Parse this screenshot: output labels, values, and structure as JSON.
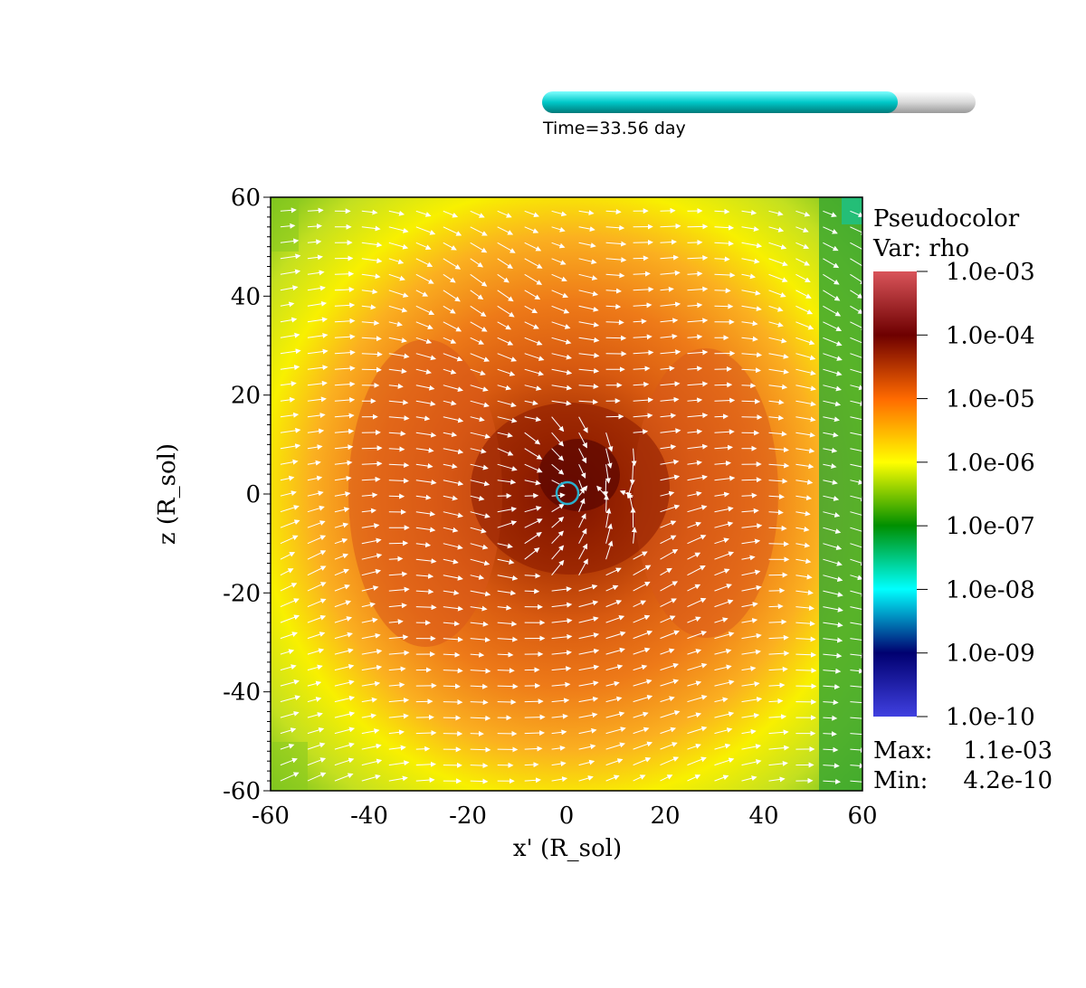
{
  "time_slider": {
    "label": "Time=33.56 day",
    "progress_fraction": 0.82,
    "fill_color": "#00cccc",
    "track_color": "#d9d9d9"
  },
  "chart_data": {
    "type": "heatmap",
    "xlabel": "x' (R_sol)",
    "ylabel": "z (R_sol)",
    "xlim": [
      -60,
      60
    ],
    "ylim": [
      -60,
      60
    ],
    "x_ticks": [
      "-60",
      "-40",
      "-20",
      "0",
      "20",
      "40",
      "60"
    ],
    "y_ticks": [
      "60",
      "40",
      "20",
      "0",
      "-20",
      "-40",
      "-60"
    ],
    "field": "rho",
    "overlay": "velocity vectors (white arrows)",
    "marker": {
      "shape": "circle",
      "x": 0,
      "z": 0,
      "color": "#2aaecc"
    },
    "legend": {
      "title": "Pseudocolor",
      "var": "Var: rho",
      "scale": "log",
      "labels": [
        "1.0e-03",
        "1.0e-04",
        "1.0e-05",
        "1.0e-06",
        "1.0e-07",
        "1.0e-08",
        "1.0e-09",
        "1.0e-10"
      ],
      "colors_top_to_bottom": [
        "#d9545a",
        "#6e0000",
        "#ff6a00",
        "#ffff00",
        "#008f00",
        "#00ffff",
        "#000070",
        "#4040e0"
      ],
      "max_label": "Max:",
      "max_value": "1.1e-03",
      "min_label": "Min:",
      "min_value": "4.2e-10"
    }
  }
}
